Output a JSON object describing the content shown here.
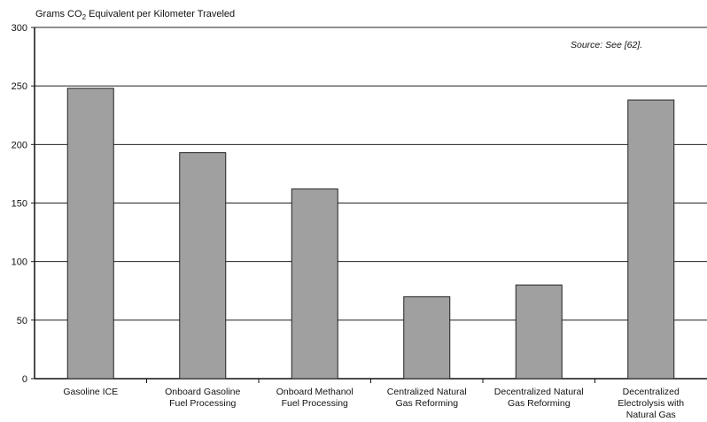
{
  "chart_data": {
    "type": "bar",
    "title": "",
    "ylabel_main": "Grams CO",
    "ylabel_sub": "2",
    "ylabel_rest": " Equivalent per Kilometer Traveled",
    "annotation": "Source: See [62].",
    "categories": [
      [
        "Gasoline ICE"
      ],
      [
        "Onboard Gasoline",
        "Fuel Processing"
      ],
      [
        "Onboard Methanol",
        "Fuel Processing"
      ],
      [
        "Centralized Natural",
        "Gas Reforming"
      ],
      [
        "Decentralized Natural",
        "Gas Reforming"
      ],
      [
        "Decentralized",
        "Electrolysis with",
        "Natural Gas"
      ]
    ],
    "values": [
      248,
      193,
      162,
      70,
      80,
      238
    ],
    "ylim": [
      0,
      300
    ],
    "yticks": [
      0,
      50,
      100,
      150,
      200,
      250,
      300
    ],
    "grid": true,
    "colors": {
      "bar": "#a0a0a0",
      "bar_stroke": "#222222",
      "grid": "#222222"
    }
  }
}
